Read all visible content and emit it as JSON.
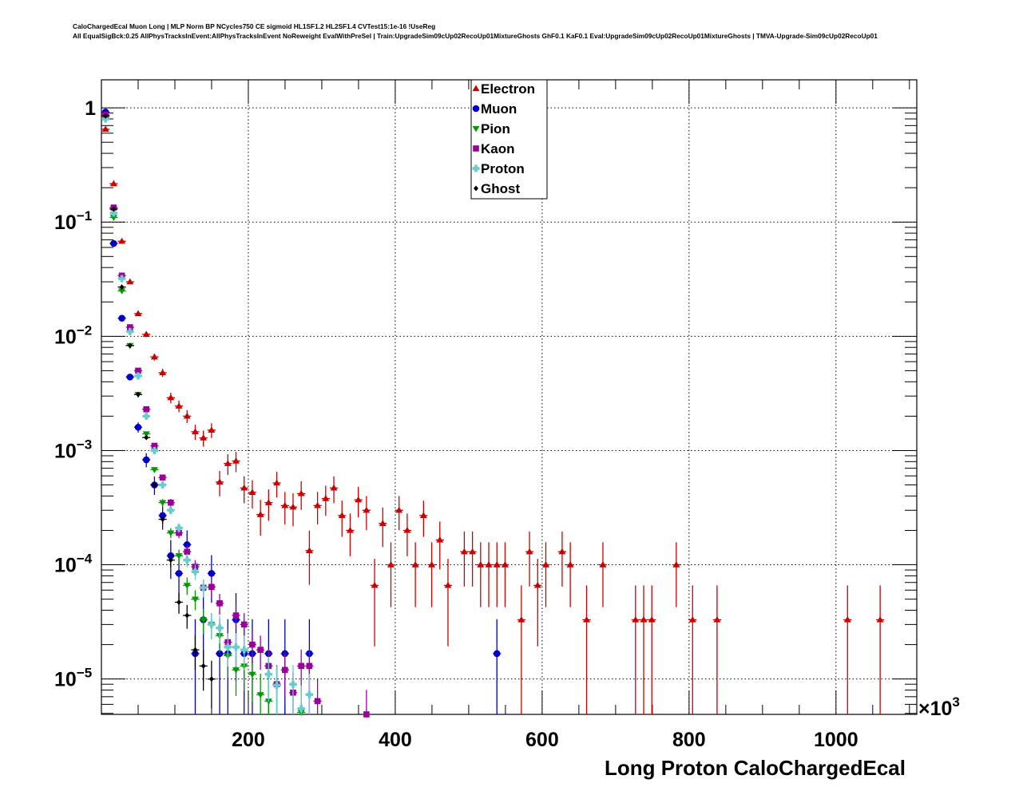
{
  "title_lines": [
    "CaloChargedEcal Muon Long | MLP Norm BP NCycles750 CE sigmoid HL1SF1.2 HL2SF1.4 CVTest15:1e-16 !UseReg",
    "All EqualSigBck:0.25 AllPhysTracksInEvent:AllPhysTracksInEvent NoReweight EvalWithPreSel | Train:UpgradeSim09cUp02RecoUp01MixtureGhosts GhF0.1 KaF0.1 Eval:UpgradeSim09cUp02RecoUp01MixtureGhosts | TMVA-Upgrade-Sim09cUp02RecoUp01"
  ],
  "chart_data": {
    "type": "scatter",
    "xlabel": "Long Proton CaloChargedEcal",
    "x_multiplier": "×10",
    "x_multiplier_exp": "3",
    "xlim": [
      0,
      1110
    ],
    "ylim": [
      4.9e-06,
      1.76
    ],
    "yscale": "log",
    "grid": true,
    "bin_width": 11.1,
    "legend_position": "top-center",
    "x_ticks": [
      {
        "value": 200,
        "label": "200"
      },
      {
        "value": 400,
        "label": "400"
      },
      {
        "value": 600,
        "label": "600"
      },
      {
        "value": 800,
        "label": "800"
      },
      {
        "value": 1000,
        "label": "1000"
      }
    ],
    "y_ticks": [
      {
        "value": 1,
        "base": "1",
        "exp": ""
      },
      {
        "value": 0.1,
        "base": "10",
        "exp": "−1"
      },
      {
        "value": 0.01,
        "base": "10",
        "exp": "−2"
      },
      {
        "value": 0.001,
        "base": "10",
        "exp": "−3"
      },
      {
        "value": 0.0001,
        "base": "10",
        "exp": "−4"
      },
      {
        "value": 1e-05,
        "base": "10",
        "exp": "−5"
      }
    ],
    "series": [
      {
        "name": "Electron",
        "color": "#cc0000",
        "marker": "triangle-up",
        "event_weight": 3.3e-05,
        "x": [
          5.6,
          16.7,
          27.8,
          38.9,
          50.0,
          61.1,
          72.2,
          83.3,
          94.4,
          105.5,
          116.6,
          127.7,
          138.8,
          149.9,
          161.0,
          172.1,
          183.2,
          194.3,
          205.4,
          216.5,
          227.6,
          238.7,
          249.8,
          260.9,
          272.0,
          283.1,
          294.2,
          305.3,
          316.4,
          327.5,
          338.6,
          349.7,
          360.8,
          371.9,
          383.0,
          394.1,
          405.2,
          416.3,
          427.4,
          438.5,
          449.6,
          460.7,
          471.8,
          494.0,
          505.1,
          516.2,
          527.3,
          538.4,
          549.5,
          571.7,
          582.8,
          593.9,
          605.0,
          627.2,
          638.3,
          660.5,
          682.7,
          727.1,
          738.2,
          749.3,
          782.6,
          804.8,
          838.1,
          1015.7,
          1060.1
        ],
        "y": [
          0.65,
          0.217,
          0.068,
          0.03,
          0.0158,
          0.0104,
          0.0066,
          0.0048,
          0.0029,
          0.00245,
          0.002,
          0.00146,
          0.00129,
          0.00151,
          0.00053,
          0.00077,
          0.00081,
          0.00047,
          0.00043,
          0.000275,
          0.00035,
          0.00052,
          0.00033,
          0.00032,
          0.00042,
          0.000133,
          0.00033,
          0.00038,
          0.00047,
          0.00027,
          0.0002,
          0.00037,
          0.0003,
          6.6e-05,
          0.00023,
          0.0001,
          0.0003,
          0.0002,
          0.0001,
          0.00027,
          0.0001,
          0.000165,
          6.6e-05,
          0.00013,
          0.00013,
          0.0001,
          0.0001,
          0.0001,
          0.0001,
          3.3e-05,
          0.00013,
          6.6e-05,
          0.0001,
          0.00013,
          0.0001,
          3.3e-05,
          0.0001,
          3.3e-05,
          3.3e-05,
          3.3e-05,
          0.0001,
          3.3e-05,
          3.3e-05,
          3.3e-05,
          3.3e-05
        ]
      },
      {
        "name": "Muon",
        "color": "#0000cc",
        "marker": "circle",
        "event_weight": 1.67e-05,
        "x": [
          5.6,
          16.7,
          27.8,
          38.9,
          50.0,
          61.1,
          72.2,
          83.3,
          94.4,
          105.5,
          116.6,
          127.7,
          138.8,
          149.9,
          161.0,
          172.1,
          183.2,
          194.3,
          205.4,
          227.6,
          249.8,
          283.1,
          538.4
        ],
        "y": [
          0.92,
          0.065,
          0.0144,
          0.0044,
          0.0016,
          0.00083,
          0.0005,
          0.00027,
          0.00012,
          8.4e-05,
          0.00015,
          1.67e-05,
          3.3e-05,
          8.4e-05,
          1.67e-05,
          1.67e-05,
          3.3e-05,
          1.67e-05,
          1.67e-05,
          1.67e-05,
          1.67e-05,
          1.67e-05,
          1.67e-05
        ]
      },
      {
        "name": "Pion",
        "color": "#009900",
        "marker": "triangle-down",
        "event_weight": 2e-06,
        "x": [
          5.6,
          16.7,
          27.8,
          38.9,
          50.0,
          61.1,
          72.2,
          83.3,
          94.4,
          105.5,
          116.6,
          127.7,
          138.8,
          149.9,
          161.0,
          172.1,
          183.2,
          194.3,
          205.4,
          216.5,
          227.6,
          238.7,
          272.0
        ],
        "y": [
          0.82,
          0.11,
          0.025,
          0.0083,
          0.0031,
          0.0014,
          0.00068,
          0.00035,
          0.00019,
          0.00012,
          6.6e-05,
          5e-05,
          3.3e-05,
          3e-05,
          2.4e-05,
          1.6e-05,
          1.2e-05,
          1.3e-05,
          1.1e-05,
          7.3e-06,
          6.4e-06,
          8.8e-06,
          5.1e-06
        ]
      },
      {
        "name": "Kaon",
        "color": "#990099",
        "marker": "square",
        "event_weight": 2e-06,
        "x": [
          5.6,
          16.7,
          27.8,
          38.9,
          50.0,
          61.1,
          72.2,
          83.3,
          94.4,
          105.5,
          116.6,
          127.7,
          138.8,
          149.9,
          161.0,
          172.1,
          183.2,
          194.3,
          205.4,
          216.5,
          227.6,
          238.7,
          249.8,
          260.9,
          272.0,
          283.1,
          294.2,
          360.8
        ],
        "y": [
          0.87,
          0.134,
          0.034,
          0.012,
          0.005,
          0.0023,
          0.0011,
          0.00058,
          0.00035,
          0.00019,
          0.00013,
          9.6e-05,
          6.3e-05,
          6.4e-05,
          4.6e-05,
          2.1e-05,
          3.6e-05,
          3e-05,
          2e-05,
          1.8e-05,
          1.3e-05,
          9e-06,
          1.2e-05,
          7.6e-06,
          1.3e-05,
          1.3e-05,
          6.4e-06,
          4.9e-06
        ]
      },
      {
        "name": "Proton",
        "color": "#66cccc",
        "marker": "cross",
        "event_weight": 2e-06,
        "x": [
          5.6,
          16.7,
          27.8,
          38.9,
          50.0,
          61.1,
          72.2,
          83.3,
          94.4,
          105.5,
          116.6,
          127.7,
          138.8,
          149.9,
          161.0,
          172.1,
          183.2,
          194.3,
          227.6,
          238.7,
          260.9,
          272.0,
          283.1
        ],
        "y": [
          0.8,
          0.12,
          0.032,
          0.011,
          0.0045,
          0.002,
          0.001,
          0.0005,
          0.0003,
          0.00021,
          0.00011,
          8.7e-05,
          6.3e-05,
          3e-05,
          2.8e-05,
          1.9e-05,
          1.9e-05,
          1.8e-05,
          1.1e-05,
          8.8e-06,
          9e-06,
          5.5e-06,
          7.3e-06
        ]
      },
      {
        "name": "Ghost",
        "color": "#000000",
        "marker": "diamond",
        "event_weight": 2e-06,
        "x": [
          5.6,
          16.7,
          27.8,
          38.9,
          50.0,
          61.1,
          72.2,
          83.3,
          94.4,
          105.5,
          116.6,
          127.7,
          138.8,
          149.9
        ],
        "y": [
          0.85,
          0.13,
          0.027,
          0.0083,
          0.0031,
          0.0013,
          0.0005,
          0.00025,
          0.00011,
          4.7e-05,
          3.6e-05,
          1.8e-05,
          1.3e-05,
          1e-05
        ]
      }
    ]
  }
}
